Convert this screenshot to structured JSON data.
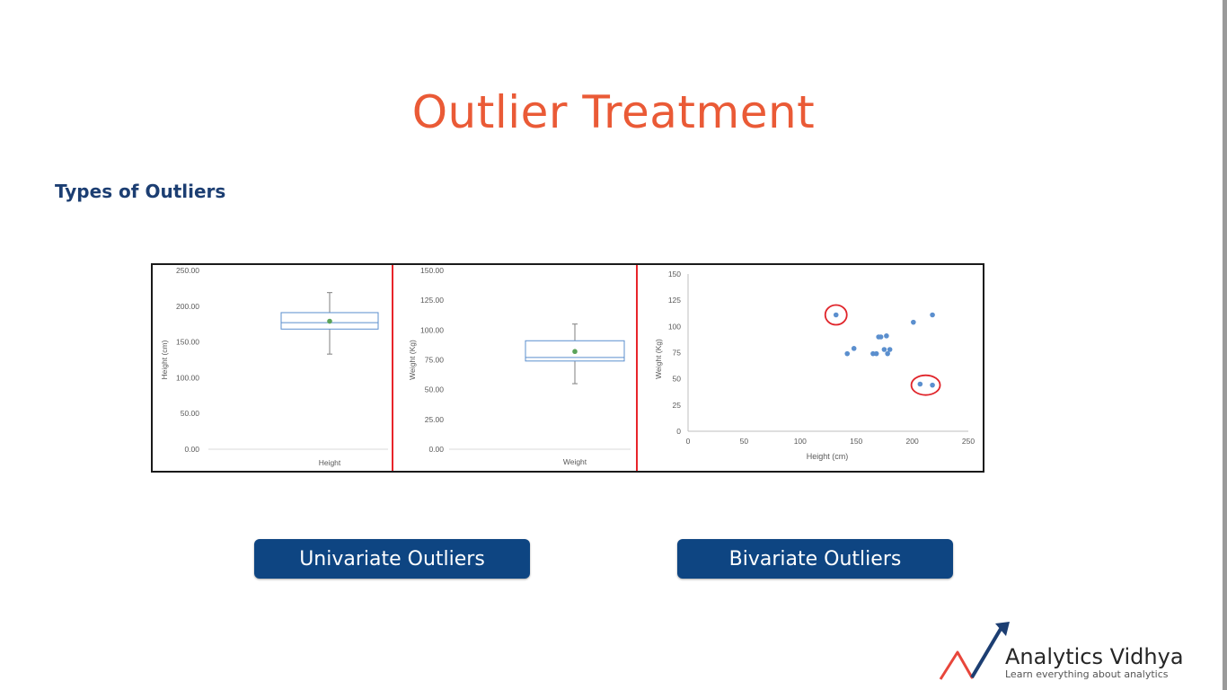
{
  "slide": {
    "title": "Outlier Treatment",
    "subtitle": "Types of Outliers"
  },
  "buttons": {
    "univariate": "Univariate Outliers",
    "bivariate": "Bivariate Outliers"
  },
  "logo": {
    "name": "Analytics Vidhya",
    "tagline": "Learn everything about analytics"
  },
  "colors": {
    "title": "#ea5a36",
    "subtitle": "#1c3e72",
    "button": "#0e4582",
    "divider": "#e8242a",
    "point": "#5b8fce",
    "highlight_circle": "#e0242a"
  },
  "chart_data": [
    {
      "type": "box",
      "title": "",
      "xlabel": "Height",
      "ylabel": "Height (cm)",
      "ylim": [
        0,
        250
      ],
      "yticks": [
        "0.00",
        "50.00",
        "100.00",
        "150.00",
        "200.00",
        "250.00"
      ],
      "box": {
        "whisker_low": 133,
        "q1": 168,
        "median": 177,
        "q3": 191,
        "whisker_high": 219,
        "mean": 179
      }
    },
    {
      "type": "box",
      "title": "",
      "xlabel": "Weight",
      "ylabel": "Weight (Kg)",
      "ylim": [
        0,
        150
      ],
      "yticks": [
        "0.00",
        "25.00",
        "50.00",
        "75.00",
        "100.00",
        "125.00",
        "150.00"
      ],
      "box": {
        "whisker_low": 55,
        "q1": 74,
        "median": 77,
        "q3": 91,
        "whisker_high": 105,
        "mean": 82
      }
    },
    {
      "type": "scatter",
      "title": "",
      "xlabel": "Height (cm)",
      "ylabel": "Weight (Kg)",
      "xlim": [
        0,
        250
      ],
      "ylim": [
        0,
        150
      ],
      "xticks": [
        "0",
        "50",
        "100",
        "150",
        "200",
        "250"
      ],
      "yticks": [
        "0",
        "25",
        "50",
        "75",
        "100",
        "125",
        "150"
      ],
      "points": [
        [
          132,
          111
        ],
        [
          142,
          74
        ],
        [
          148,
          79
        ],
        [
          165,
          74
        ],
        [
          168,
          74
        ],
        [
          170,
          90
        ],
        [
          172,
          90
        ],
        [
          175,
          78
        ],
        [
          177,
          91
        ],
        [
          178,
          74
        ],
        [
          180,
          78
        ],
        [
          201,
          104
        ],
        [
          207,
          45
        ],
        [
          218,
          111
        ],
        [
          218,
          44
        ]
      ],
      "highlighted_outliers": [
        [
          132,
          111
        ],
        [
          212,
          44
        ]
      ]
    }
  ]
}
